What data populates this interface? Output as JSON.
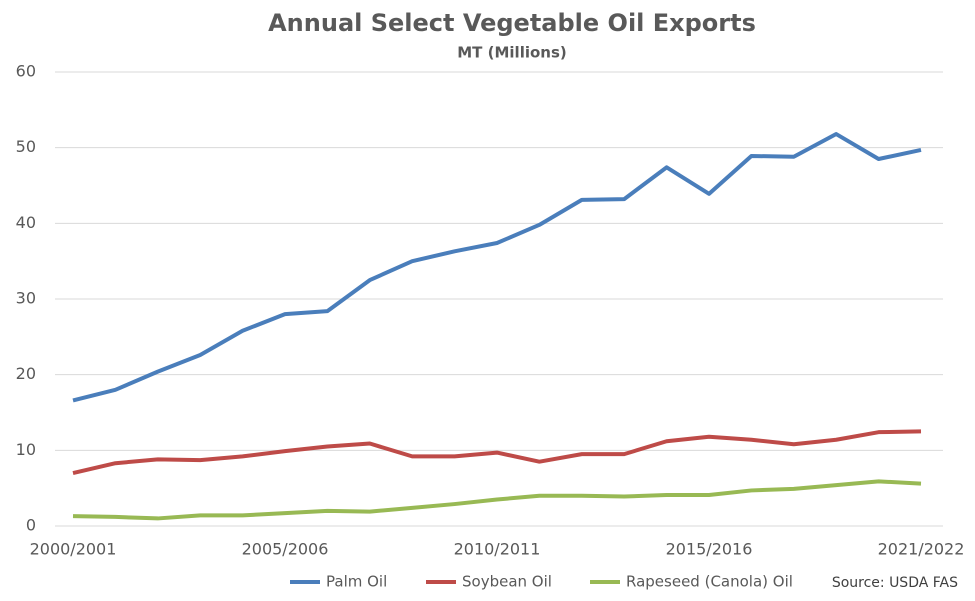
{
  "chart_data": {
    "type": "line",
    "title": "Annual Select Vegetable Oil Exports",
    "subtitle": "MT (Millions)",
    "categories": [
      "2000/2001",
      null,
      null,
      null,
      null,
      "2005/2006",
      null,
      null,
      null,
      null,
      "2010/2011",
      null,
      null,
      null,
      null,
      "2015/2016",
      null,
      null,
      null,
      null,
      "2021/2022"
    ],
    "series": [
      {
        "name": "Palm Oil",
        "color": "#4a7ebb",
        "values": [
          16.6,
          18.0,
          20.4,
          22.6,
          25.8,
          28.0,
          28.4,
          32.5,
          35.0,
          36.3,
          37.4,
          39.8,
          43.1,
          43.2,
          47.4,
          43.9,
          48.9,
          48.8,
          51.8,
          48.5,
          49.7
        ]
      },
      {
        "name": "Soybean Oil",
        "color": "#be4b48",
        "values": [
          7.0,
          8.3,
          8.8,
          8.7,
          9.2,
          9.9,
          10.5,
          10.9,
          9.2,
          9.2,
          9.7,
          8.5,
          9.5,
          9.5,
          11.2,
          11.8,
          11.4,
          10.8,
          11.4,
          12.4,
          12.5
        ]
      },
      {
        "name": "Rapeseed (Canola) Oil",
        "color": "#98b954",
        "values": [
          1.3,
          1.2,
          1.0,
          1.4,
          1.4,
          1.7,
          2.0,
          1.9,
          2.4,
          2.9,
          3.5,
          4.0,
          4.0,
          3.9,
          4.1,
          4.1,
          4.7,
          4.9,
          5.4,
          5.9,
          5.6
        ]
      }
    ],
    "ylim": [
      0,
      60
    ],
    "yticks": [
      0,
      10,
      20,
      30,
      40,
      50,
      60
    ],
    "grid": true,
    "legend": "bottom",
    "source": "Source: USDA FAS"
  }
}
